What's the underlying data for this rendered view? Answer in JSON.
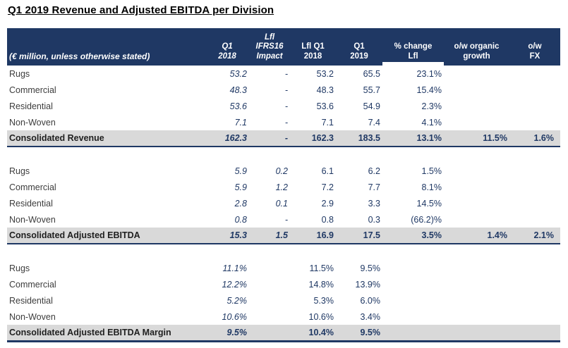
{
  "title": "Q1 2019 Revenue and Adjusted EBITDA per Division",
  "colors": {
    "header_bg": "#1F3864",
    "number_text": "#1F3864",
    "row_highlight": "#D9D9D9",
    "label_text": "#3D3D3D"
  },
  "table": {
    "unit_note": "(€ million, unless otherwise stated)",
    "columns": [
      {
        "lines": [
          "Q1",
          "2018"
        ],
        "italic": true
      },
      {
        "lines": [
          "Lfl",
          "IFRS16",
          "Impact"
        ],
        "italic": true
      },
      {
        "lines": [
          "Lfl Q1",
          "2018"
        ],
        "italic": false
      },
      {
        "lines": [
          "Q1",
          "2019"
        ],
        "italic": false
      },
      {
        "lines": [
          "% change",
          "Lfl"
        ],
        "italic": false,
        "underline_gap": true
      },
      {
        "lines": [
          "o/w organic",
          "growth"
        ],
        "italic": false
      },
      {
        "lines": [
          "o/w",
          "FX"
        ],
        "italic": false
      }
    ],
    "sections": [
      {
        "rows": [
          {
            "label": "Rugs",
            "values": [
              "53.2",
              "-",
              "53.2",
              "65.5",
              "23.1%",
              "",
              ""
            ]
          },
          {
            "label": "Commercial",
            "values": [
              "48.3",
              "-",
              "48.3",
              "55.7",
              "15.4%",
              "",
              ""
            ]
          },
          {
            "label": "Residential",
            "values": [
              "53.6",
              "-",
              "53.6",
              "54.9",
              "2.3%",
              "",
              ""
            ]
          },
          {
            "label": "Non-Woven",
            "values": [
              "7.1",
              "-",
              "7.1",
              "7.4",
              "4.1%",
              "",
              ""
            ]
          }
        ],
        "total": {
          "label": "Consolidated Revenue",
          "values": [
            "162.3",
            "-",
            "162.3",
            "183.5",
            "13.1%",
            "11.5%",
            "1.6%"
          ]
        }
      },
      {
        "rows": [
          {
            "label": "Rugs",
            "values": [
              "5.9",
              "0.2",
              "6.1",
              "6.2",
              "1.5%",
              "",
              ""
            ]
          },
          {
            "label": "Commercial",
            "values": [
              "5.9",
              "1.2",
              "7.2",
              "7.7",
              "8.1%",
              "",
              ""
            ]
          },
          {
            "label": "Residential",
            "values": [
              "2.8",
              "0.1",
              "2.9",
              "3.3",
              "14.5%",
              "",
              ""
            ]
          },
          {
            "label": "Non-Woven",
            "values": [
              "0.8",
              "-",
              "0.8",
              "0.3",
              "(66.2)%",
              "",
              ""
            ]
          }
        ],
        "total": {
          "label": "Consolidated Adjusted EBITDA",
          "values": [
            "15.3",
            "1.5",
            "16.9",
            "17.5",
            "3.5%",
            "1.4%",
            "2.1%"
          ]
        }
      },
      {
        "rows": [
          {
            "label": "Rugs",
            "values": [
              "11.1%",
              "",
              "11.5%",
              "9.5%",
              "",
              "",
              ""
            ]
          },
          {
            "label": "Commercial",
            "values": [
              "12.2%",
              "",
              "14.8%",
              "13.9%",
              "",
              "",
              ""
            ]
          },
          {
            "label": "Residential",
            "values": [
              "5.2%",
              "",
              "5.3%",
              "6.0%",
              "",
              "",
              ""
            ]
          },
          {
            "label": "Non-Woven",
            "values": [
              "10.6%",
              "",
              "10.6%",
              "3.4%",
              "",
              "",
              ""
            ]
          }
        ],
        "total": {
          "label": "Consolidated Adjusted EBITDA Margin",
          "values": [
            "9.5%",
            "",
            "10.4%",
            "9.5%",
            "",
            "",
            ""
          ]
        }
      }
    ]
  }
}
